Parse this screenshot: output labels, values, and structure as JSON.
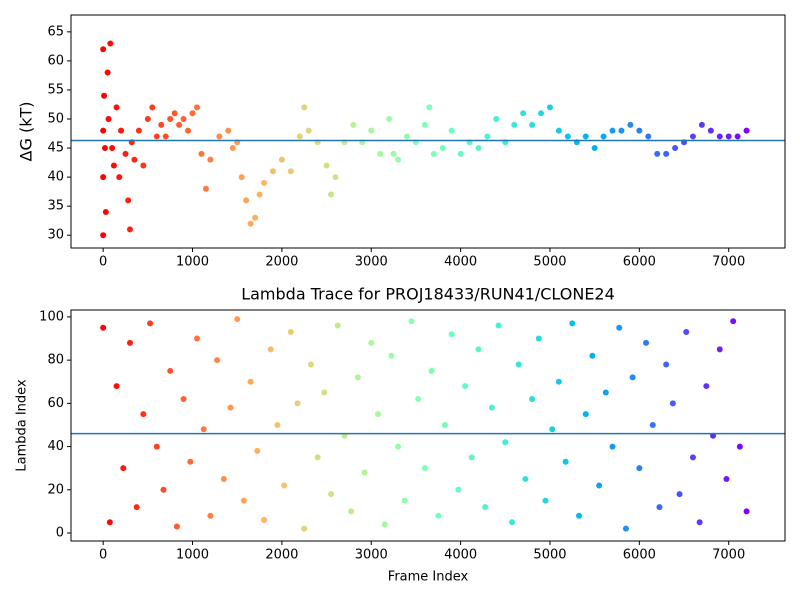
{
  "chart_data": [
    {
      "type": "scatter",
      "ylabel": "ΔG (kT)",
      "colormap": "rainbow",
      "colormap_reversed": true,
      "hline": 46.3,
      "hline_color": "#1f77b4",
      "xlim": [
        -360,
        7630
      ],
      "ylim": [
        27.8,
        67.9
      ],
      "xticks": [
        0,
        1000,
        2000,
        3000,
        4000,
        5000,
        6000,
        7000
      ],
      "yticks": [
        30,
        35,
        40,
        45,
        50,
        55,
        60,
        65
      ],
      "x": [
        0,
        0,
        0,
        0,
        10,
        20,
        30,
        50,
        60,
        80,
        100,
        120,
        150,
        180,
        200,
        250,
        280,
        300,
        320,
        350,
        400,
        450,
        500,
        550,
        600,
        650,
        700,
        750,
        800,
        850,
        900,
        950,
        1000,
        1050,
        1100,
        1150,
        1200,
        1300,
        1400,
        1450,
        1500,
        1550,
        1600,
        1650,
        1700,
        1750,
        1800,
        1900,
        2000,
        2100,
        2200,
        2250,
        2300,
        2400,
        2500,
        2550,
        2600,
        2700,
        2800,
        2900,
        3000,
        3100,
        3200,
        3250,
        3300,
        3400,
        3500,
        3600,
        3650,
        3700,
        3800,
        3900,
        4000,
        4100,
        4200,
        4300,
        4400,
        4500,
        4600,
        4700,
        4800,
        4900,
        5000,
        5100,
        5200,
        5300,
        5400,
        5500,
        5600,
        5700,
        5800,
        5900,
        6000,
        6100,
        6200,
        6300,
        6400,
        6500,
        6600,
        6700,
        6800,
        6900,
        7000,
        7100,
        7200
      ],
      "values": [
        30,
        40,
        62,
        48,
        54,
        45,
        34,
        58,
        50,
        63,
        45,
        42,
        52,
        40,
        48,
        44,
        36,
        31,
        46,
        43,
        48,
        42,
        50,
        52,
        47,
        49,
        47,
        50,
        51,
        49,
        50,
        48,
        51,
        52,
        44,
        38,
        43,
        47,
        48,
        45,
        46,
        40,
        36,
        32,
        33,
        37,
        39,
        41,
        43,
        41,
        47,
        52,
        48,
        46,
        42,
        37,
        40,
        46,
        49,
        46,
        48,
        44,
        50,
        44,
        43,
        47,
        46,
        49,
        52,
        44,
        45,
        48,
        44,
        46,
        45,
        47,
        50,
        46,
        49,
        51,
        49,
        51,
        52,
        48,
        47,
        46,
        47,
        45,
        47,
        48,
        48,
        49,
        48,
        47,
        44,
        44,
        45,
        46,
        47,
        49,
        48,
        47,
        47,
        47,
        48
      ]
    },
    {
      "type": "scatter",
      "title": "Lambda Trace for PROJ18433/RUN41/CLONE24",
      "xlabel": "Frame Index",
      "ylabel": "Lambda Index",
      "colormap": "rainbow",
      "colormap_reversed": true,
      "hline": 46,
      "hline_color": "#1f77b4",
      "xlim": [
        -360,
        7630
      ],
      "ylim": [
        -3.7,
        103.2
      ],
      "xticks": [
        0,
        1000,
        2000,
        3000,
        4000,
        5000,
        6000,
        7000
      ],
      "yticks": [
        0,
        20,
        40,
        60,
        80,
        100
      ],
      "x": [
        0,
        75,
        150,
        225,
        300,
        375,
        450,
        525,
        600,
        675,
        750,
        825,
        900,
        975,
        1050,
        1125,
        1200,
        1275,
        1350,
        1425,
        1500,
        1575,
        1650,
        1725,
        1800,
        1875,
        1950,
        2025,
        2100,
        2175,
        2250,
        2325,
        2400,
        2475,
        2550,
        2625,
        2700,
        2775,
        2850,
        2925,
        3000,
        3075,
        3150,
        3225,
        3300,
        3375,
        3450,
        3525,
        3600,
        3675,
        3750,
        3825,
        3900,
        3975,
        4050,
        4125,
        4200,
        4275,
        4350,
        4425,
        4500,
        4575,
        4650,
        4725,
        4800,
        4875,
        4950,
        5025,
        5100,
        5175,
        5250,
        5325,
        5400,
        5475,
        5550,
        5625,
        5700,
        5775,
        5850,
        5925,
        6000,
        6075,
        6150,
        6225,
        6300,
        6375,
        6450,
        6525,
        6600,
        6675,
        6750,
        6825,
        6900,
        6975,
        7050,
        7125,
        7200
      ],
      "values": [
        95,
        5,
        68,
        30,
        88,
        12,
        55,
        97,
        40,
        20,
        75,
        3,
        62,
        33,
        90,
        48,
        8,
        80,
        25,
        58,
        99,
        15,
        70,
        38,
        6,
        85,
        50,
        22,
        93,
        60,
        2,
        78,
        35,
        65,
        18,
        96,
        45,
        10,
        72,
        28,
        88,
        55,
        4,
        82,
        40,
        15,
        98,
        62,
        30,
        75,
        8,
        50,
        92,
        20,
        68,
        35,
        85,
        12,
        58,
        96,
        42,
        5,
        78,
        25,
        62,
        90,
        15,
        48,
        70,
        33,
        97,
        8,
        55,
        82,
        22,
        65,
        40,
        95,
        2,
        72,
        30,
        88,
        50,
        12,
        78,
        60,
        18,
        93,
        35,
        5,
        68,
        45,
        85,
        25,
        98,
        40,
        10
      ]
    }
  ]
}
